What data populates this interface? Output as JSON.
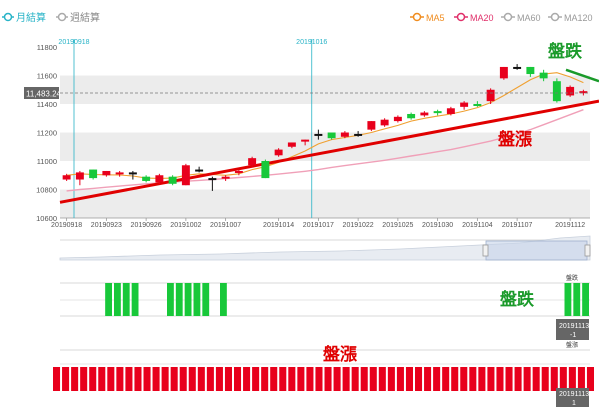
{
  "header": {
    "tabs": [
      {
        "label": "月結算",
        "active": true
      },
      {
        "label": "週結算",
        "active": false
      }
    ],
    "ma_legend": [
      {
        "label": "MA5",
        "color": "#f08c1e"
      },
      {
        "label": "MA20",
        "color": "#e0306a"
      },
      {
        "label": "MA60",
        "color": "#aaaaaa"
      },
      {
        "label": "MA120",
        "color": "#aaaaaa"
      }
    ]
  },
  "colors": {
    "up": "#e8001c",
    "down": "#18c83a",
    "flat": "#111111",
    "ma5": "#f0a030",
    "ma20": "#f0a0b8",
    "marker": "#27b3c7",
    "trend_up": "#e00000",
    "trend_down": "#1a9a2a"
  },
  "chart_data": {
    "type": "candlestick",
    "ylim": [
      10600,
      11800
    ],
    "yticks": [
      "11800",
      "11600",
      "11400",
      "11200",
      "11000",
      "10800",
      "10600"
    ],
    "xticks": [
      "20190918",
      "20190923",
      "20190926",
      "20191002",
      "20191007",
      "20191014",
      "20191017",
      "20191022",
      "20191025",
      "20191030",
      "20191104",
      "20191107",
      "20191112"
    ],
    "current_price_label": "11,483.24",
    "current_price": 11483,
    "period_markers": [
      "20190918",
      "20191016"
    ],
    "annotations": {
      "down_text": "盤跌",
      "up_text": "盤漲"
    },
    "candles": [
      {
        "o": 10870,
        "c": 10900,
        "h": 10910,
        "l": 10860
      },
      {
        "o": 10870,
        "c": 10920,
        "h": 10930,
        "l": 10830
      },
      {
        "o": 10940,
        "c": 10880,
        "h": 10940,
        "l": 10870
      },
      {
        "o": 10900,
        "c": 10930,
        "h": 10930,
        "l": 10890
      },
      {
        "o": 10910,
        "c": 10920,
        "h": 10930,
        "l": 10890
      },
      {
        "o": 10920,
        "c": 10920,
        "h": 10930,
        "l": 10870
      },
      {
        "o": 10890,
        "c": 10860,
        "h": 10900,
        "l": 10850
      },
      {
        "o": 10850,
        "c": 10900,
        "h": 10910,
        "l": 10840
      },
      {
        "o": 10890,
        "c": 10840,
        "h": 10900,
        "l": 10830
      },
      {
        "o": 10830,
        "c": 10970,
        "h": 10980,
        "l": 10830
      },
      {
        "o": 10940,
        "c": 10940,
        "h": 10960,
        "l": 10920
      },
      {
        "o": 10880,
        "c": 10880,
        "h": 10890,
        "l": 10790
      },
      {
        "o": 10880,
        "c": 10890,
        "h": 10900,
        "l": 10860
      },
      {
        "o": 10920,
        "c": 10930,
        "h": 10940,
        "l": 10900
      },
      {
        "o": 10970,
        "c": 11020,
        "h": 11030,
        "l": 10960
      },
      {
        "o": 11000,
        "c": 10880,
        "h": 11010,
        "l": 10880
      },
      {
        "o": 11040,
        "c": 11080,
        "h": 11090,
        "l": 11030
      },
      {
        "o": 11100,
        "c": 11130,
        "h": 11130,
        "l": 11090
      },
      {
        "o": 11140,
        "c": 11150,
        "h": 11150,
        "l": 11110
      },
      {
        "o": 11190,
        "c": 11190,
        "h": 11220,
        "l": 11150
      },
      {
        "o": 11200,
        "c": 11160,
        "h": 11200,
        "l": 11150
      },
      {
        "o": 11170,
        "c": 11200,
        "h": 11210,
        "l": 11160
      },
      {
        "o": 11190,
        "c": 11190,
        "h": 11210,
        "l": 11170
      },
      {
        "o": 11220,
        "c": 11280,
        "h": 11280,
        "l": 11210
      },
      {
        "o": 11250,
        "c": 11290,
        "h": 11300,
        "l": 11240
      },
      {
        "o": 11280,
        "c": 11310,
        "h": 11320,
        "l": 11270
      },
      {
        "o": 11330,
        "c": 11300,
        "h": 11340,
        "l": 11290
      },
      {
        "o": 11320,
        "c": 11340,
        "h": 11350,
        "l": 11310
      },
      {
        "o": 11350,
        "c": 11340,
        "h": 11360,
        "l": 11320
      },
      {
        "o": 11330,
        "c": 11370,
        "h": 11380,
        "l": 11320
      },
      {
        "o": 11380,
        "c": 11410,
        "h": 11420,
        "l": 11360
      },
      {
        "o": 11400,
        "c": 11390,
        "h": 11420,
        "l": 11380
      },
      {
        "o": 11420,
        "c": 11500,
        "h": 11510,
        "l": 11400
      },
      {
        "o": 11580,
        "c": 11660,
        "h": 11660,
        "l": 11570
      },
      {
        "o": 11660,
        "c": 11660,
        "h": 11680,
        "l": 11640
      },
      {
        "o": 11660,
        "c": 11610,
        "h": 11660,
        "l": 11590
      },
      {
        "o": 11620,
        "c": 11580,
        "h": 11640,
        "l": 11560
      },
      {
        "o": 11560,
        "c": 11420,
        "h": 11580,
        "l": 11410
      },
      {
        "o": 11460,
        "c": 11520,
        "h": 11530,
        "l": 11450
      },
      {
        "o": 11480,
        "c": 11490,
        "h": 11500,
        "l": 11460
      }
    ],
    "ma5": [
      10900,
      10910,
      10905,
      10903,
      10902,
      10895,
      10880,
      10878,
      10880,
      10900,
      10910,
      10905,
      10900,
      10910,
      10940,
      10960,
      10990,
      11030,
      11070,
      11120,
      11150,
      11165,
      11180,
      11200,
      11225,
      11250,
      11280,
      11300,
      11315,
      11330,
      11350,
      11375,
      11410,
      11460,
      11515,
      11570,
      11610,
      11620,
      11590,
      11550
    ],
    "ma20": [
      10790,
      10800,
      10808,
      10816,
      10824,
      10832,
      10840,
      10846,
      10852,
      10858,
      10864,
      10870,
      10877,
      10884,
      10892,
      10900,
      10908,
      10918,
      10928,
      10940,
      10955,
      10968,
      10980,
      10992,
      11005,
      11020,
      11035,
      11050,
      11065,
      11080,
      11100,
      11120,
      11140,
      11165,
      11190,
      11220,
      11255,
      11290,
      11325,
      11360
    ],
    "down_panel": {
      "label": "盤跌",
      "top_label": "盤跌",
      "bottom_label_1": "20191113",
      "bottom_label_2": "-1",
      "flags": [
        0,
        0,
        0,
        0,
        0,
        1,
        1,
        1,
        1,
        0,
        0,
        0,
        1,
        1,
        1,
        1,
        1,
        0,
        1,
        0,
        0,
        0,
        0,
        0,
        0,
        0,
        0,
        0,
        0,
        0,
        0,
        0,
        0,
        0,
        0,
        0,
        0,
        0,
        0,
        0,
        0,
        0,
        0,
        0,
        0,
        0,
        0,
        0,
        0,
        0,
        0,
        0,
        0,
        0,
        0,
        0,
        0,
        1,
        1,
        1
      ]
    },
    "up_panel": {
      "label": "盤漲",
      "top_label": "盤漲",
      "bottom_label_1": "20191113",
      "bottom_label_2": "1",
      "count": 60
    }
  }
}
